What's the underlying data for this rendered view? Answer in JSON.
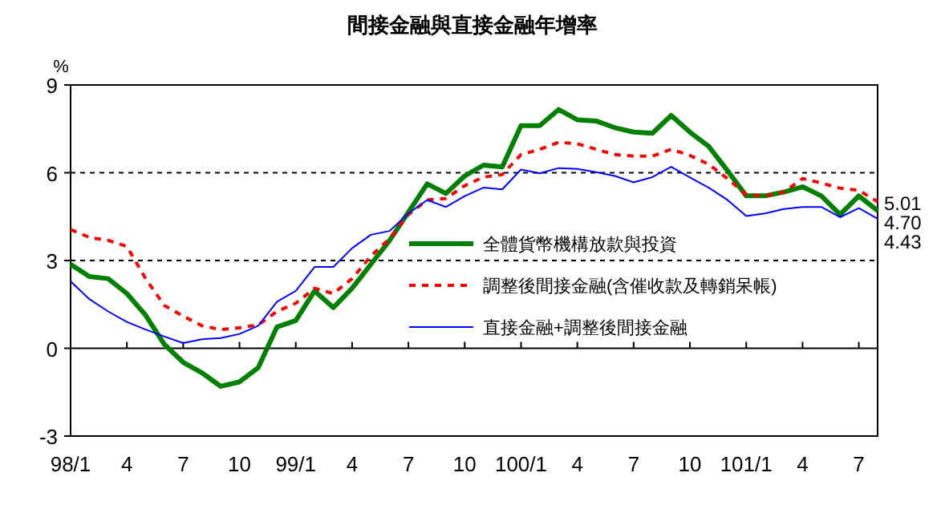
{
  "chart_data": {
    "type": "line",
    "title": "間接金融與直接金融年增率",
    "ylabel": "%",
    "categories": [
      "98/1",
      null,
      null,
      "4",
      null,
      null,
      "7",
      null,
      null,
      "10",
      null,
      null,
      "99/1",
      null,
      null,
      "4",
      null,
      null,
      "7",
      null,
      null,
      "10",
      null,
      null,
      "100/1",
      null,
      null,
      "4",
      null,
      null,
      "7",
      null,
      null,
      "10",
      null,
      null,
      "101/1",
      null,
      null,
      "4",
      null,
      null,
      "7",
      null
    ],
    "ylim": [
      -3,
      9
    ],
    "yticks": [
      -3,
      0,
      3,
      6,
      9
    ],
    "legend": "right",
    "marker": "none",
    "ref_lines": [
      {
        "axis": "y",
        "value": 0,
        "line_style": "solid",
        "color": "#000000"
      },
      {
        "axis": "y",
        "value": 3,
        "line_style": "dashed",
        "color": "#000000"
      },
      {
        "axis": "y",
        "value": 6,
        "line_style": "dashed",
        "color": "#000000"
      }
    ],
    "series": [
      {
        "name": "全體貨幣機構放款與投資",
        "color": "#008000",
        "line_style": "solid",
        "values": [
          2.87,
          2.45,
          2.38,
          1.87,
          1.13,
          0.13,
          -0.48,
          -0.84,
          -1.3,
          -1.15,
          -0.66,
          0.73,
          0.95,
          1.96,
          1.39,
          2.05,
          2.87,
          3.69,
          4.65,
          5.62,
          5.29,
          5.89,
          6.26,
          6.2,
          7.61,
          7.61,
          8.16,
          7.81,
          7.77,
          7.54,
          7.39,
          7.35,
          7.96,
          7.39,
          6.9,
          6.07,
          5.21,
          5.21,
          5.34,
          5.52,
          5.21,
          4.57,
          5.21,
          4.7
        ],
        "value_labels": [
          null,
          null,
          null,
          null,
          null,
          null,
          null,
          null,
          null,
          null,
          null,
          null,
          null,
          null,
          null,
          null,
          null,
          null,
          null,
          null,
          null,
          null,
          null,
          null,
          null,
          null,
          null,
          null,
          null,
          null,
          null,
          null,
          null,
          null,
          null,
          null,
          null,
          null,
          null,
          null,
          null,
          null,
          null,
          "4.70"
        ]
      },
      {
        "name": "調整後間接金融(含催收款及轉銷呆帳)",
        "color": "#ff0000",
        "line_style": "dashed",
        "values": [
          4.06,
          3.79,
          3.69,
          3.48,
          2.38,
          1.46,
          1.1,
          0.77,
          0.64,
          0.7,
          0.8,
          1.26,
          1.54,
          2.05,
          1.87,
          2.38,
          3.15,
          3.75,
          4.57,
          5.07,
          5.12,
          5.56,
          5.85,
          5.94,
          6.62,
          6.8,
          7.04,
          6.99,
          6.8,
          6.62,
          6.57,
          6.57,
          6.8,
          6.59,
          6.29,
          5.8,
          5.25,
          5.21,
          5.34,
          5.8,
          5.65,
          5.47,
          5.4,
          5.01
        ],
        "value_labels": [
          null,
          null,
          null,
          null,
          null,
          null,
          null,
          null,
          null,
          null,
          null,
          null,
          null,
          null,
          null,
          null,
          null,
          null,
          null,
          null,
          null,
          null,
          null,
          null,
          null,
          null,
          null,
          null,
          null,
          null,
          null,
          null,
          null,
          null,
          null,
          null,
          null,
          null,
          null,
          null,
          null,
          null,
          null,
          "5.01"
        ]
      },
      {
        "name": "直接金融+調整後間接金融",
        "color": "#0000ff",
        "line_style": "solid",
        "values": [
          2.29,
          1.68,
          1.26,
          0.9,
          0.64,
          0.4,
          0.18,
          0.31,
          0.35,
          0.49,
          0.77,
          1.59,
          1.96,
          2.78,
          2.78,
          3.42,
          3.88,
          4.01,
          4.61,
          5.07,
          4.83,
          5.2,
          5.49,
          5.43,
          6.11,
          5.98,
          6.16,
          6.13,
          6.02,
          5.89,
          5.67,
          5.85,
          6.2,
          5.84,
          5.49,
          5.07,
          4.52,
          4.61,
          4.76,
          4.83,
          4.83,
          4.48,
          4.79,
          4.43
        ],
        "value_labels": [
          null,
          null,
          null,
          null,
          null,
          null,
          null,
          null,
          null,
          null,
          null,
          null,
          null,
          null,
          null,
          null,
          null,
          null,
          null,
          null,
          null,
          null,
          null,
          null,
          null,
          null,
          null,
          null,
          null,
          null,
          null,
          null,
          null,
          null,
          null,
          null,
          null,
          null,
          null,
          null,
          null,
          null,
          null,
          "4.43"
        ]
      }
    ]
  }
}
